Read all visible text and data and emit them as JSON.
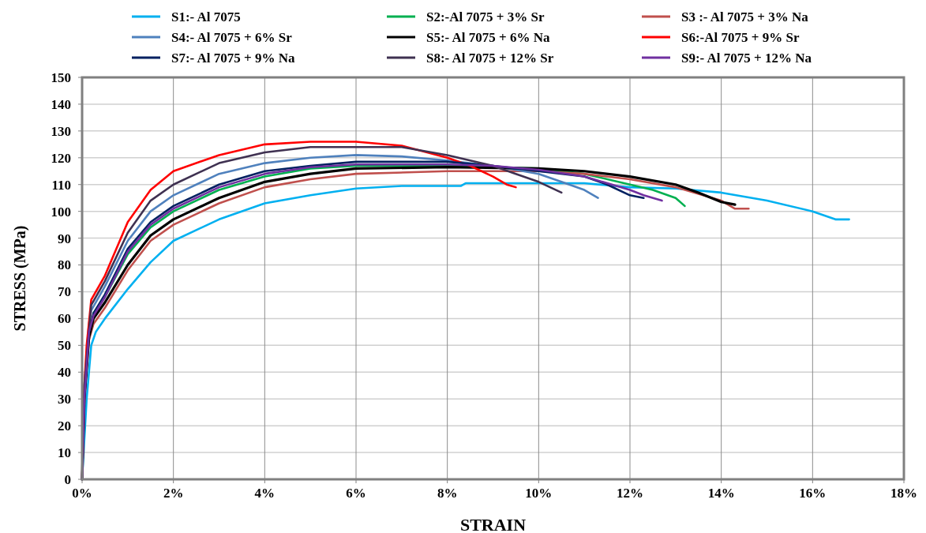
{
  "chart_data": {
    "type": "line",
    "xlabel": "STRAIN",
    "ylabel": "STRESS (MPa)",
    "xlim": [
      0,
      18
    ],
    "ylim": [
      0,
      150
    ],
    "xticks": [
      {
        "value": 0,
        "label": "0%"
      },
      {
        "value": 2,
        "label": "2%"
      },
      {
        "value": 4,
        "label": "4%"
      },
      {
        "value": 6,
        "label": "6%"
      },
      {
        "value": 8,
        "label": "8%"
      },
      {
        "value": 10,
        "label": "10%"
      },
      {
        "value": 12,
        "label": "12%"
      },
      {
        "value": 14,
        "label": "14%"
      },
      {
        "value": 16,
        "label": "16%"
      },
      {
        "value": 18,
        "label": "18%"
      }
    ],
    "yticks": [
      0,
      10,
      20,
      30,
      40,
      50,
      60,
      70,
      80,
      90,
      100,
      110,
      120,
      130,
      140,
      150
    ],
    "grid": true,
    "legend": "top",
    "marker": "none",
    "line_style": "solid",
    "series": [
      {
        "name": "S1:- Al 7075",
        "color": "#00b0f0",
        "x": [
          0,
          0.1,
          0.2,
          0.3,
          0.5,
          1,
          1.5,
          2,
          3,
          4,
          5,
          6,
          7,
          8.3,
          8.4,
          11,
          12,
          13,
          14,
          15,
          16,
          16.5,
          16.8
        ],
        "values": [
          0,
          30,
          50,
          55,
          60,
          71,
          81,
          89,
          97,
          103,
          106,
          108.5,
          109.5,
          109.5,
          110.5,
          110.5,
          109,
          108.5,
          107,
          104,
          100,
          97,
          97
        ]
      },
      {
        "name": "S2:-Al 7075 + 3% Sr",
        "color": "#00b050",
        "x": [
          0.25,
          0.5,
          1,
          1.5,
          2,
          3,
          4,
          5,
          6,
          8,
          10,
          11,
          12,
          12.5,
          13,
          13.2
        ],
        "values": [
          62,
          68,
          84,
          94,
          100,
          108,
          113,
          116,
          117,
          117,
          116,
          114,
          110,
          108,
          105,
          102
        ]
      },
      {
        "name": "S3 :- Al 7075 + 3% Na",
        "color": "#c0504d",
        "x": [
          0,
          0.05,
          0.15,
          0.25,
          0.5,
          1,
          1.5,
          2,
          3,
          4,
          5,
          6,
          8,
          10,
          11,
          12,
          13,
          14,
          14.3,
          14.6
        ],
        "values": [
          0,
          30,
          52,
          58,
          64,
          78,
          89,
          95,
          103,
          109,
          112,
          114,
          115,
          115,
          114,
          112,
          109,
          104,
          101,
          101
        ]
      },
      {
        "name": "S4:- Al 7075 + 6% Sr",
        "color": "#4f81bd",
        "x": [
          0,
          0.05,
          0.15,
          0.2,
          0.5,
          1,
          1.5,
          2,
          3,
          4,
          5,
          6,
          7,
          8,
          9,
          10,
          10.5,
          11,
          11.3
        ],
        "values": [
          0,
          35,
          58,
          63,
          72,
          89,
          100,
          106,
          114,
          118,
          120,
          121,
          120.5,
          119,
          117,
          114,
          111,
          108,
          105
        ]
      },
      {
        "name": "S5:- Al 7075 + 6% Na",
        "color": "#000000",
        "x": [
          0,
          0.05,
          0.15,
          0.25,
          0.5,
          1,
          1.5,
          2,
          3,
          4,
          5,
          6,
          8,
          10,
          11,
          12,
          13,
          13.5,
          14,
          14.3
        ],
        "values": [
          0,
          30,
          53,
          60,
          66,
          80,
          91,
          97,
          105,
          111,
          114,
          116,
          116.5,
          116,
          115,
          113,
          110,
          107,
          103.5,
          102.5
        ]
      },
      {
        "name": "S6:-Al 7075 + 9% Sr",
        "color": "#ff0000",
        "x": [
          0,
          0.05,
          0.1,
          0.2,
          0.5,
          1,
          1.5,
          2,
          3,
          4,
          5,
          6,
          7,
          8,
          8.5,
          9,
          9.3,
          9.5
        ],
        "values": [
          0,
          35,
          50,
          67,
          76,
          96,
          108,
          115,
          121,
          125,
          126,
          126,
          124.5,
          120,
          117,
          113,
          110,
          109
        ]
      },
      {
        "name": "S7:- Al 7075 + 9% Na",
        "color": "#002060",
        "x": [
          0,
          0.05,
          0.15,
          0.25,
          0.5,
          1,
          1.5,
          2,
          3,
          4,
          5,
          6,
          8,
          9,
          10,
          11,
          11.5,
          12,
          12.3
        ],
        "values": [
          0,
          30,
          55,
          62,
          69,
          86,
          96,
          102,
          110,
          115,
          117,
          118.5,
          118.5,
          117,
          115,
          113,
          110,
          106,
          105
        ]
      },
      {
        "name": "S8:- Al 7075 + 12% Sr",
        "color": "#3f3151",
        "x": [
          0,
          0.05,
          0.15,
          0.2,
          0.5,
          1,
          1.5,
          2,
          3,
          4,
          5,
          6,
          7,
          8,
          9,
          9.5,
          10,
          10.5
        ],
        "values": [
          0,
          35,
          55,
          65,
          74,
          92,
          104,
          110,
          118,
          122,
          124,
          124,
          124,
          121,
          117,
          114,
          111,
          107
        ]
      },
      {
        "name": "S9:- Al 7075 + 12% Na",
        "color": "#7030a0",
        "x": [
          0,
          0.05,
          0.15,
          0.25,
          0.5,
          1,
          1.5,
          2,
          3,
          4,
          5,
          6,
          8,
          9,
          10,
          11,
          12,
          12.3,
          12.7
        ],
        "values": [
          0,
          30,
          55,
          61,
          68,
          85,
          95,
          101,
          109,
          114,
          116.5,
          117.5,
          117.5,
          117,
          115.5,
          113,
          108,
          106,
          104
        ]
      }
    ]
  }
}
